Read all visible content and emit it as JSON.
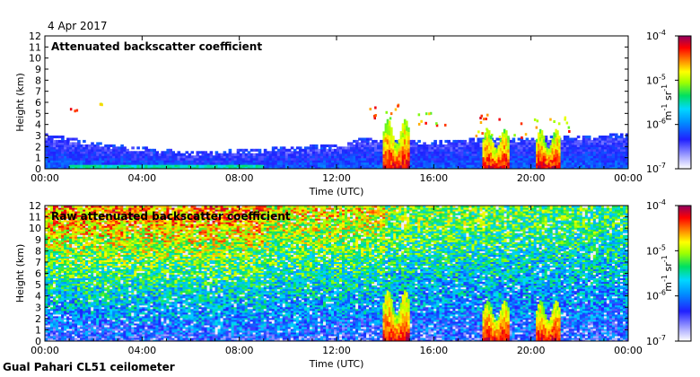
{
  "date": "4 Apr 2017",
  "footer": "Gual Pahari CL51 ceilometer",
  "chart_data": [
    {
      "type": "heatmap",
      "title": "Attenuated backscatter coefficient",
      "xlabel": "Time (UTC)",
      "ylabel": "Height (km)",
      "x_ticks": [
        "00:00",
        "04:00",
        "08:00",
        "12:00",
        "16:00",
        "20:00",
        "00:00"
      ],
      "x_range_hours": [
        0,
        24
      ],
      "y_ticks": [
        0,
        1,
        2,
        3,
        4,
        5,
        6,
        7,
        8,
        9,
        10,
        11,
        12
      ],
      "ylim": [
        0,
        12
      ],
      "colorbar": {
        "label_base": "m",
        "label_sup1": "-1",
        "label_mid": " sr",
        "label_sup2": "-1",
        "ticks": [
          {
            "base": "10",
            "exp": "-4"
          },
          {
            "base": "10",
            "exp": "-5"
          },
          {
            "base": "10",
            "exp": "-6"
          },
          {
            "base": "10",
            "exp": "-7"
          }
        ],
        "range": [
          1e-07,
          0.0001
        ],
        "scale": "log"
      },
      "features": {
        "boundary_layer_top_km": [
          [
            0,
            2.8
          ],
          [
            3,
            1.8
          ],
          [
            6,
            1.2
          ],
          [
            9,
            1.5
          ],
          [
            12,
            1.9
          ],
          [
            13,
            2.4
          ],
          [
            15,
            2.2
          ],
          [
            18,
            2.4
          ],
          [
            21,
            2.6
          ],
          [
            24,
            2.8
          ]
        ],
        "clouds": [
          {
            "t_start": 0.9,
            "t_end": 1.3,
            "base_km": 5.2,
            "top_km": 5.6
          },
          {
            "t_start": 2.2,
            "t_end": 2.4,
            "base_km": 5.9,
            "top_km": 6.1
          },
          {
            "t_start": 13.2,
            "t_end": 14.6,
            "base_km": 4.5,
            "top_km": 6.0
          },
          {
            "t_start": 15.3,
            "t_end": 16.5,
            "base_km": 4.0,
            "top_km": 5.2
          },
          {
            "t_start": 17.5,
            "t_end": 19.8,
            "base_km": 2.8,
            "top_km": 5.0
          },
          {
            "t_start": 19.9,
            "t_end": 21.6,
            "base_km": 2.7,
            "top_km": 4.8
          }
        ],
        "rain_shafts": [
          {
            "t_start": 13.9,
            "t_end": 15.0,
            "top_km": 4.5
          },
          {
            "t_start": 18.0,
            "t_end": 19.1,
            "top_km": 3.6
          },
          {
            "t_start": 20.2,
            "t_end": 21.2,
            "top_km": 3.6
          }
        ]
      }
    },
    {
      "type": "heatmap",
      "title": "Raw attenuated backscatter coefficient",
      "xlabel": "Time (UTC)",
      "ylabel": "Height (km)",
      "x_ticks": [
        "00:00",
        "04:00",
        "08:00",
        "12:00",
        "16:00",
        "20:00",
        "00:00"
      ],
      "x_range_hours": [
        0,
        24
      ],
      "y_ticks": [
        0,
        1,
        2,
        3,
        4,
        5,
        6,
        7,
        8,
        9,
        10,
        11,
        12
      ],
      "ylim": [
        0,
        12
      ],
      "colorbar": {
        "label_base": "m",
        "label_sup1": "-1",
        "label_mid": " sr",
        "label_sup2": "-1",
        "ticks": [
          {
            "base": "10",
            "exp": "-4"
          },
          {
            "base": "10",
            "exp": "-5"
          },
          {
            "base": "10",
            "exp": "-6"
          },
          {
            "base": "10",
            "exp": "-7"
          }
        ],
        "range": [
          1e-07,
          0.0001
        ],
        "scale": "log"
      },
      "features": {
        "background_noise": "high at 00:00-09:00 above 5 km, decreasing toward 24:00",
        "rain_shafts": [
          {
            "t_start": 13.9,
            "t_end": 15.0,
            "top_km": 4.5
          },
          {
            "t_start": 18.0,
            "t_end": 19.1,
            "top_km": 3.6
          },
          {
            "t_start": 20.2,
            "t_end": 21.2,
            "top_km": 3.6
          }
        ]
      }
    }
  ]
}
